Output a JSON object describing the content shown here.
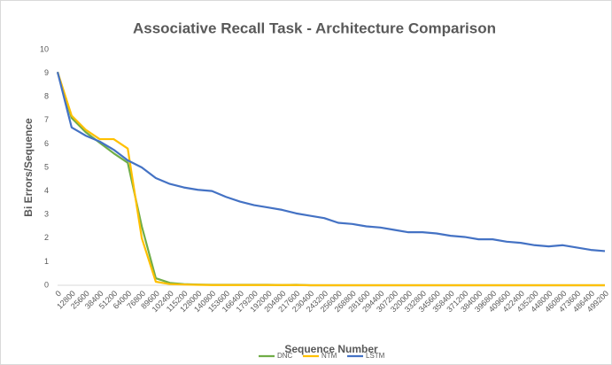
{
  "chart_data": {
    "type": "line",
    "title": "Associative Recall Task - Architecture Comparison",
    "x_label": "Sequence Number",
    "y_label": "Bi Errors/Sequence",
    "categories": [
      "0",
      "12800",
      "25600",
      "38400",
      "51200",
      "64000",
      "76800",
      "89600",
      "102400",
      "115200",
      "128000",
      "140800",
      "153600",
      "166400",
      "179200",
      "192000",
      "204800",
      "217600",
      "230400",
      "243200",
      "256000",
      "268800",
      "281600",
      "294400",
      "307200",
      "320000",
      "332800",
      "345600",
      "358400",
      "371200",
      "384000",
      "396800",
      "409600",
      "422400",
      "435200",
      "448000",
      "460800",
      "473600",
      "486400",
      "499200"
    ],
    "series": [
      {
        "name": "DNC",
        "color": "#70ad47",
        "values": [
          9.05,
          7.1,
          6.5,
          6.05,
          5.6,
          5.2,
          2.5,
          0.3,
          0.1,
          0.05,
          0.03,
          0.02,
          0.02,
          0.02,
          0.02,
          0.02,
          0.01,
          0.02,
          0,
          0,
          0,
          0,
          0,
          0,
          0,
          0,
          0,
          0,
          0,
          0,
          0,
          0,
          0,
          0,
          0,
          0,
          0,
          0,
          0,
          0
        ]
      },
      {
        "name": "NTM",
        "color": "#ffc000",
        "values": [
          9.05,
          7.2,
          6.6,
          6.2,
          6.2,
          5.8,
          2.0,
          0.15,
          0.05,
          0.03,
          0.02,
          0.01,
          0.01,
          0.01,
          0.01,
          0.01,
          0.01,
          0.01,
          0,
          0,
          0,
          0,
          0,
          0,
          0,
          0,
          0,
          0,
          0,
          0,
          0,
          0,
          0,
          0,
          0,
          0,
          0,
          0,
          0,
          0
        ]
      },
      {
        "name": "LSTM",
        "color": "#4472c4",
        "values": [
          9.05,
          6.7,
          6.35,
          6.1,
          5.75,
          5.3,
          5.0,
          4.55,
          4.3,
          4.15,
          4.05,
          4.0,
          3.75,
          3.55,
          3.4,
          3.3,
          3.2,
          3.05,
          2.95,
          2.85,
          2.65,
          2.6,
          2.5,
          2.45,
          2.35,
          2.25,
          2.25,
          2.2,
          2.1,
          2.05,
          1.95,
          1.95,
          1.85,
          1.8,
          1.7,
          1.65,
          1.7,
          1.6,
          1.5,
          1.45
        ]
      }
    ],
    "ylim": [
      0,
      10
    ],
    "yticks": [
      0,
      1,
      2,
      3,
      4,
      5,
      6,
      7,
      8,
      9,
      10
    ],
    "grid": false,
    "legend_position": "bottom"
  }
}
